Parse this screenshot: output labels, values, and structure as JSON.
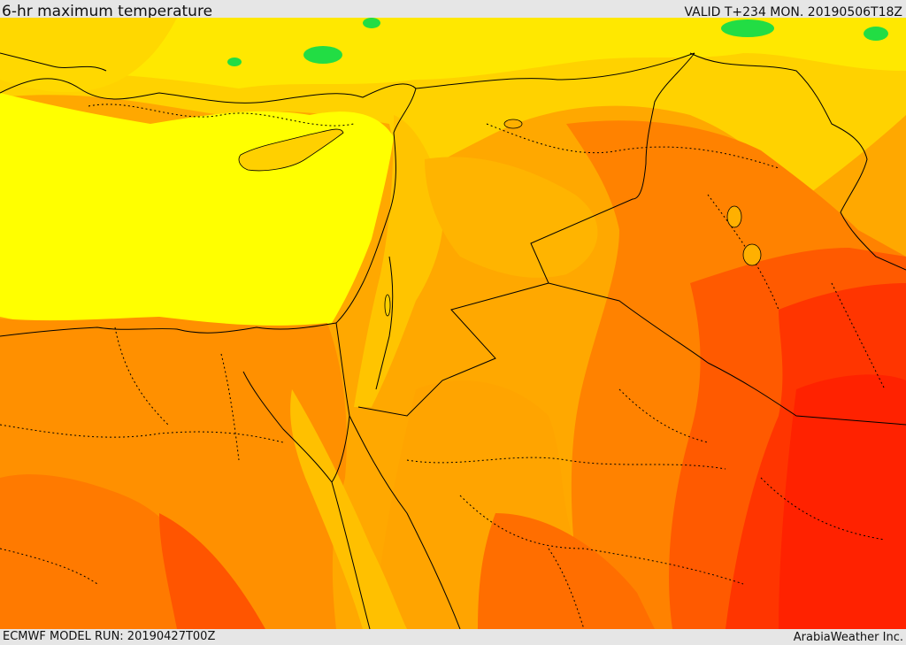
{
  "header": {
    "title": "6-hr maximum temperature",
    "valid": "VALID T+234 MON. 20190506T18Z"
  },
  "footer": {
    "model_run": "ECMWF MODEL RUN: 20190427T00Z",
    "credit": "ArabiaWeather Inc."
  },
  "map": {
    "region": "Eastern Mediterranean and Middle East",
    "colors": {
      "yellow": "#ffff00",
      "light_gold": "#ffe000",
      "gold": "#ffc000",
      "orange_light": "#ffa800",
      "orange": "#ff8c00",
      "orange_dark": "#ff6a00",
      "red_orange": "#ff4a00",
      "red": "#ff2200",
      "green": "#22dd44",
      "border": "#000000"
    }
  }
}
